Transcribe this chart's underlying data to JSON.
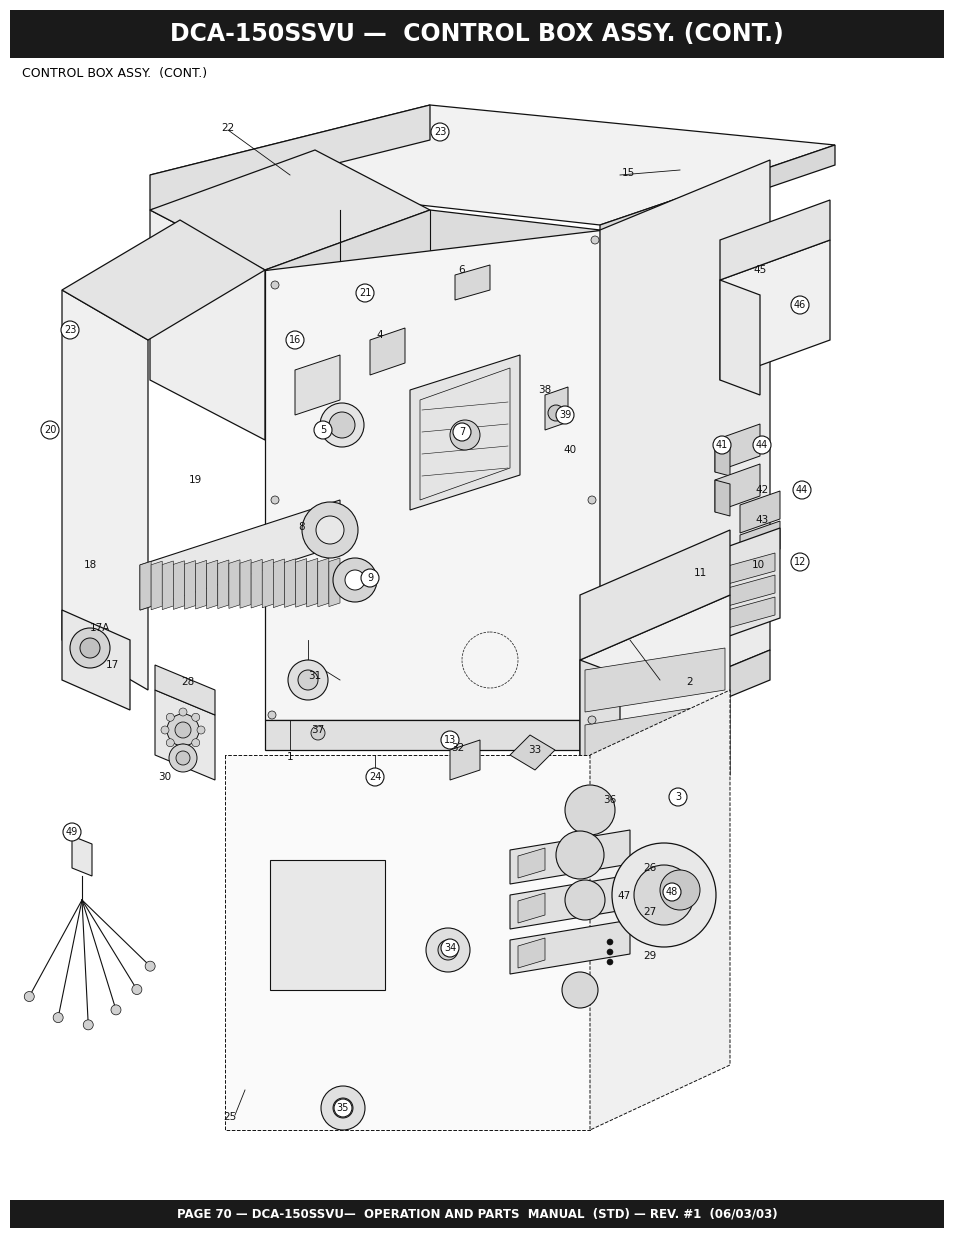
{
  "title": "DCA-150SSVU —  CONTROL BOX ASSY. (CONT.)",
  "subtitle": "CONTROL BOX ASSY.  (CONT.)",
  "footer": "PAGE 70 — DCA-150SSVU—  OPERATION AND PARTS  MANUAL  (STD) — REV. #1  (06/03/03)",
  "header_bg": "#1a1a1a",
  "header_text_color": "#ffffff",
  "footer_bg": "#1a1a1a",
  "footer_text_color": "#ffffff",
  "page_bg": "#ffffff",
  "line_color": "#111111",
  "title_fontsize": 17,
  "subtitle_fontsize": 9,
  "footer_fontsize": 8.5,
  "label_fontsize": 7.5
}
